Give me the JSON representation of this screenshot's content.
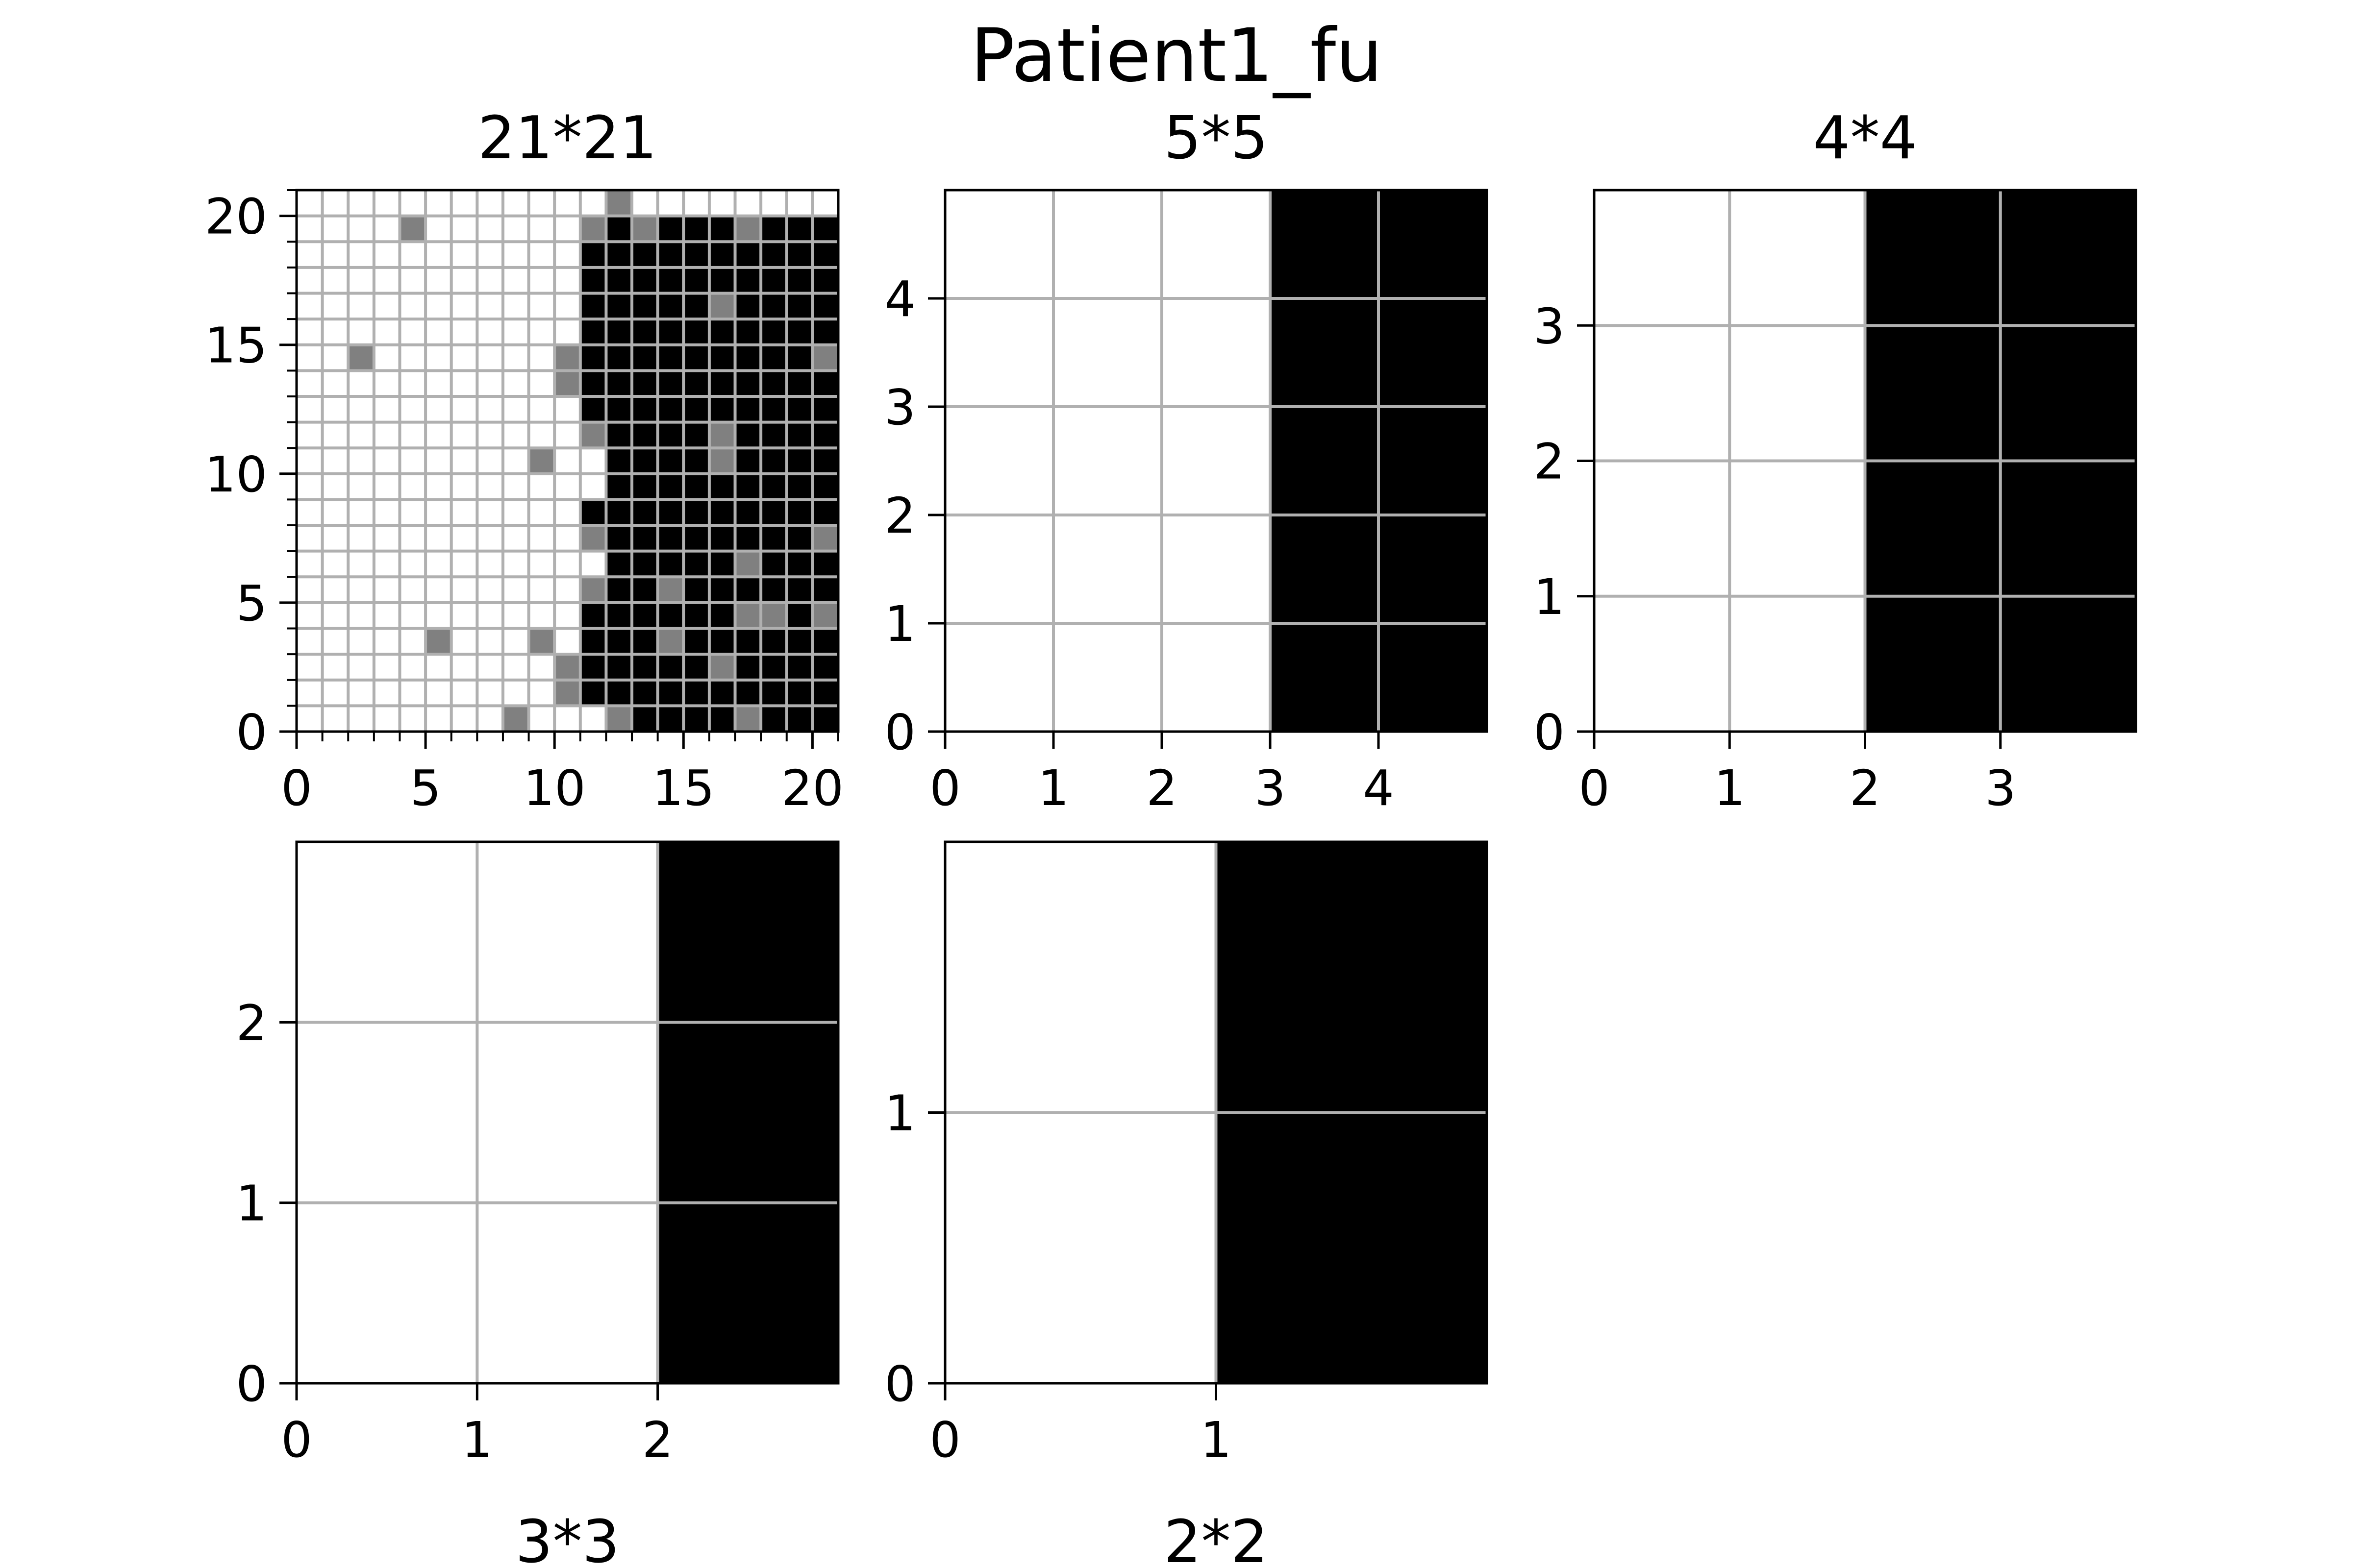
{
  "figure": {
    "title": "Patient1_fu"
  },
  "colors": {
    "white": "#ffffff",
    "black": "#000000",
    "gray": "#808080",
    "grid": "#b0b0b0",
    "axis": "#000000"
  },
  "chart_data": [
    {
      "type": "heatmap",
      "title": "21*21",
      "title_position": "top",
      "n": 21,
      "xlim": [
        0,
        21
      ],
      "ylim": [
        0,
        21
      ],
      "xticks": [
        0,
        5,
        10,
        15,
        20
      ],
      "yticks": [
        0,
        5,
        10,
        15,
        20
      ],
      "minor_ticks": true,
      "grid": true,
      "value_legend": {
        "0": "white",
        "1": "gray",
        "2": "black"
      },
      "cells": [
        "000000000000100000000",
        "000010000001212221222",
        "000000000002222222222",
        "000000000002222222222",
        "000000000002222212222",
        "000000000002222222222",
        "001000000012222222221",
        "000000000012222222222",
        "000000000002222222222",
        "000000000001222212222",
        "000000000100222212222",
        "000000000000222222222",
        "000000000002222222222",
        "000000000001222222221",
        "000000000000222221222",
        "000000000001221222222",
        "000000000002222221121",
        "000001000102221222222",
        "000000000012222212222",
        "000000000012222222222",
        "000000001000122221222"
      ]
    },
    {
      "type": "heatmap",
      "title": "5*5",
      "title_position": "top",
      "n": 5,
      "xlim": [
        0,
        5
      ],
      "ylim": [
        0,
        5
      ],
      "xticks": [
        0,
        1,
        2,
        3,
        4
      ],
      "yticks": [
        0,
        1,
        2,
        3,
        4
      ],
      "grid": true,
      "boundary_x": 3
    },
    {
      "type": "heatmap",
      "title": "4*4",
      "title_position": "top",
      "n": 4,
      "xlim": [
        0,
        4
      ],
      "ylim": [
        0,
        4
      ],
      "xticks": [
        0,
        1,
        2,
        3
      ],
      "yticks": [
        0,
        1,
        2,
        3
      ],
      "grid": true,
      "boundary_x": 2
    },
    {
      "type": "heatmap",
      "title": "3*3",
      "title_position": "bottom",
      "n": 3,
      "xlim": [
        0,
        3
      ],
      "ylim": [
        0,
        3
      ],
      "xticks": [
        0,
        1,
        2
      ],
      "yticks": [
        0,
        1,
        2
      ],
      "grid": true,
      "boundary_x": 2
    },
    {
      "type": "heatmap",
      "title": "2*2",
      "title_position": "bottom",
      "n": 2,
      "xlim": [
        0,
        2
      ],
      "ylim": [
        0,
        2
      ],
      "xticks": [
        0,
        1
      ],
      "yticks": [
        0,
        1
      ],
      "grid": true,
      "boundary_x": 1
    }
  ]
}
